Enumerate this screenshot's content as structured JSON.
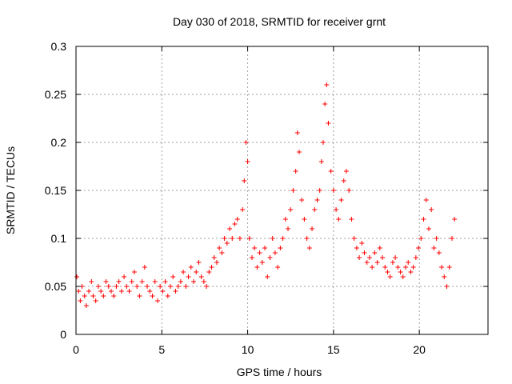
{
  "chart_data": {
    "type": "scatter",
    "title": "Day 030 of 2018, SRMTID for receiver grnt",
    "xlabel": "GPS time / hours",
    "ylabel": "SRMTID / TECUs",
    "xlim": [
      0,
      24
    ],
    "ylim": [
      0,
      0.3
    ],
    "xticks": [
      0,
      5,
      10,
      15,
      20
    ],
    "xtick_labels": [
      "0",
      "5",
      "10",
      "15",
      "20"
    ],
    "yticks": [
      0,
      0.05,
      0.1,
      0.15,
      0.2,
      0.25,
      0.3
    ],
    "ytick_labels": [
      "0",
      "0.05",
      "0.1",
      "0.15",
      "0.2",
      "0.25",
      "0.3"
    ],
    "grid": true,
    "marker": "+",
    "color": "#ff0000",
    "series": [
      {
        "name": "SRMTID",
        "x": [
          0.05,
          0.15,
          0.25,
          0.35,
          0.5,
          0.6,
          0.75,
          0.9,
          1.0,
          1.15,
          1.3,
          1.45,
          1.6,
          1.75,
          1.9,
          2.05,
          2.2,
          2.35,
          2.5,
          2.65,
          2.8,
          2.95,
          3.1,
          3.25,
          3.4,
          3.55,
          3.7,
          3.85,
          4.0,
          4.15,
          4.3,
          4.45,
          4.6,
          4.75,
          4.9,
          5.05,
          5.2,
          5.35,
          5.5,
          5.65,
          5.8,
          5.95,
          6.1,
          6.25,
          6.4,
          6.55,
          6.7,
          6.85,
          7.0,
          7.15,
          7.3,
          7.45,
          7.6,
          7.75,
          7.9,
          8.05,
          8.2,
          8.35,
          8.5,
          8.65,
          8.8,
          8.95,
          9.1,
          9.25,
          9.4,
          9.55,
          9.7,
          9.8,
          9.9,
          10.0,
          10.1,
          10.25,
          10.4,
          10.55,
          10.7,
          10.85,
          11.0,
          11.15,
          11.3,
          11.45,
          11.6,
          11.75,
          11.9,
          12.05,
          12.2,
          12.35,
          12.5,
          12.65,
          12.8,
          12.9,
          13.0,
          13.15,
          13.3,
          13.45,
          13.6,
          13.75,
          13.9,
          14.05,
          14.2,
          14.3,
          14.4,
          14.5,
          14.6,
          14.7,
          14.85,
          15.0,
          15.15,
          15.3,
          15.45,
          15.6,
          15.75,
          15.9,
          16.05,
          16.2,
          16.35,
          16.5,
          16.65,
          16.8,
          16.95,
          17.1,
          17.25,
          17.4,
          17.55,
          17.7,
          17.85,
          18.0,
          18.15,
          18.3,
          18.45,
          18.6,
          18.75,
          18.9,
          19.05,
          19.2,
          19.35,
          19.5,
          19.65,
          19.8,
          19.95,
          20.1,
          20.25,
          20.4,
          20.55,
          20.7,
          20.85,
          21.0,
          21.15,
          21.3,
          21.45,
          21.6,
          21.75,
          21.9,
          22.05
        ],
        "y": [
          0.06,
          0.045,
          0.035,
          0.05,
          0.04,
          0.03,
          0.045,
          0.055,
          0.04,
          0.035,
          0.05,
          0.045,
          0.04,
          0.055,
          0.05,
          0.045,
          0.04,
          0.05,
          0.055,
          0.045,
          0.06,
          0.05,
          0.045,
          0.055,
          0.065,
          0.05,
          0.04,
          0.055,
          0.07,
          0.05,
          0.045,
          0.04,
          0.055,
          0.035,
          0.05,
          0.045,
          0.055,
          0.04,
          0.05,
          0.06,
          0.045,
          0.05,
          0.055,
          0.065,
          0.05,
          0.06,
          0.07,
          0.055,
          0.065,
          0.075,
          0.06,
          0.055,
          0.05,
          0.065,
          0.07,
          0.08,
          0.075,
          0.09,
          0.085,
          0.1,
          0.095,
          0.11,
          0.1,
          0.115,
          0.12,
          0.1,
          0.13,
          0.16,
          0.2,
          0.18,
          0.1,
          0.08,
          0.09,
          0.07,
          0.085,
          0.075,
          0.09,
          0.06,
          0.08,
          0.1,
          0.085,
          0.07,
          0.09,
          0.1,
          0.12,
          0.11,
          0.13,
          0.15,
          0.17,
          0.21,
          0.19,
          0.14,
          0.12,
          0.1,
          0.09,
          0.11,
          0.13,
          0.14,
          0.15,
          0.18,
          0.2,
          0.24,
          0.26,
          0.22,
          0.17,
          0.15,
          0.13,
          0.12,
          0.14,
          0.16,
          0.17,
          0.15,
          0.12,
          0.1,
          0.09,
          0.08,
          0.095,
          0.085,
          0.075,
          0.08,
          0.07,
          0.085,
          0.075,
          0.09,
          0.08,
          0.07,
          0.065,
          0.06,
          0.075,
          0.08,
          0.07,
          0.065,
          0.06,
          0.07,
          0.075,
          0.065,
          0.07,
          0.08,
          0.09,
          0.1,
          0.12,
          0.14,
          0.11,
          0.13,
          0.09,
          0.1,
          0.085,
          0.07,
          0.06,
          0.05,
          0.07,
          0.1,
          0.12
        ]
      }
    ]
  }
}
